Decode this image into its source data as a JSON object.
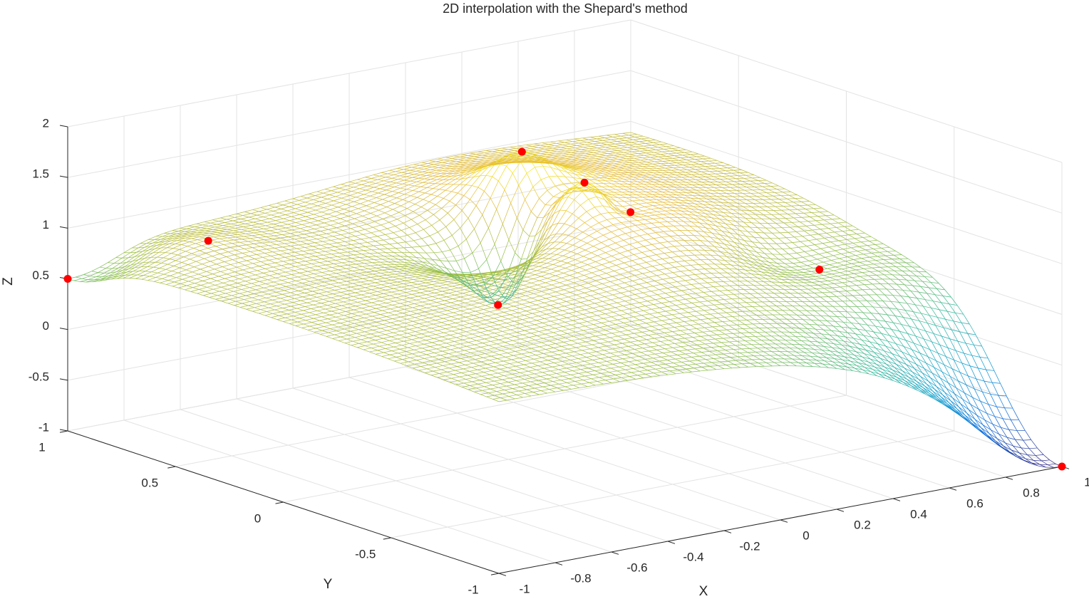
{
  "chart_data": {
    "type": "surface",
    "title": "2D interpolation with the Shepard's method",
    "xlabel": "X",
    "ylabel": "Y",
    "zlabel": "Z",
    "points": {
      "x": [
        -1,
        1,
        0,
        0.2,
        0.2,
        0.31,
        -0.7,
        0.69
      ],
      "y": [
        1,
        -1,
        0.31,
        0.46,
        0.17,
        0.1,
        0.74,
        -0.28
      ],
      "z": [
        0.5,
        -1,
        0.2,
        1.5,
        1.4,
        1.1,
        0.9,
        0.6
      ],
      "color": "#ff0000"
    },
    "xlim": [
      -1,
      1
    ],
    "ylim": [
      -1,
      1
    ],
    "zlim": [
      -1,
      2
    ],
    "xticks": [
      -1,
      -0.8,
      -0.6,
      -0.4,
      -0.2,
      0,
      0.2,
      0.4,
      0.6,
      0.8,
      1
    ],
    "yticks": [
      -1,
      -0.5,
      0,
      0.5,
      1
    ],
    "zticks": [
      -1,
      -0.5,
      0,
      0.5,
      1,
      1.5,
      2
    ],
    "grid": true,
    "colormap": "parula"
  }
}
